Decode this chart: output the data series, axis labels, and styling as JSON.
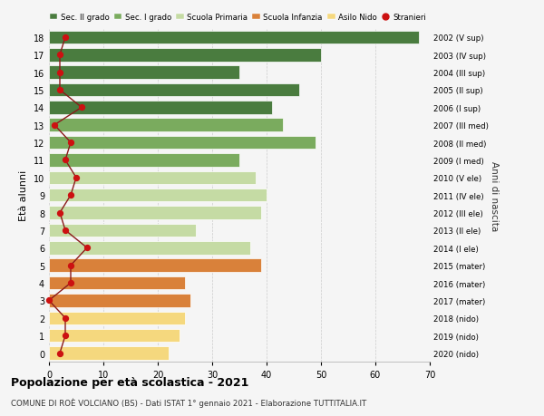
{
  "ages": [
    18,
    17,
    16,
    15,
    14,
    13,
    12,
    11,
    10,
    9,
    8,
    7,
    6,
    5,
    4,
    3,
    2,
    1,
    0
  ],
  "values": [
    68,
    50,
    35,
    46,
    41,
    43,
    49,
    35,
    38,
    40,
    39,
    27,
    37,
    39,
    25,
    26,
    25,
    24,
    22
  ],
  "stranieri": [
    3,
    2,
    2,
    2,
    6,
    1,
    4,
    3,
    5,
    4,
    2,
    3,
    7,
    4,
    4,
    0,
    3,
    3,
    2
  ],
  "right_labels": [
    "2002 (V sup)",
    "2003 (IV sup)",
    "2004 (III sup)",
    "2005 (II sup)",
    "2006 (I sup)",
    "2007 (III med)",
    "2008 (II med)",
    "2009 (I med)",
    "2010 (V ele)",
    "2011 (IV ele)",
    "2012 (III ele)",
    "2013 (II ele)",
    "2014 (I ele)",
    "2015 (mater)",
    "2016 (mater)",
    "2017 (mater)",
    "2018 (nido)",
    "2019 (nido)",
    "2020 (nido)"
  ],
  "bar_colors": [
    "#4a7c3f",
    "#4a7c3f",
    "#4a7c3f",
    "#4a7c3f",
    "#4a7c3f",
    "#7aab5e",
    "#7aab5e",
    "#7aab5e",
    "#c5dba4",
    "#c5dba4",
    "#c5dba4",
    "#c5dba4",
    "#c5dba4",
    "#d9813a",
    "#d9813a",
    "#d9813a",
    "#f5d87e",
    "#f5d87e",
    "#f5d87e"
  ],
  "legend_labels": [
    "Sec. II grado",
    "Sec. I grado",
    "Scuola Primaria",
    "Scuola Infanzia",
    "Asilo Nido",
    "Stranieri"
  ],
  "legend_colors": [
    "#4a7c3f",
    "#7aab5e",
    "#c5dba4",
    "#d9813a",
    "#f5d87e",
    "#cc1111"
  ],
  "title": "Popolazione per età scolastica - 2021",
  "subtitle": "COMUNE DI ROÈ VOLCIANO (BS) - Dati ISTAT 1° gennaio 2021 - Elaborazione TUTTITALIA.IT",
  "ylabel": "Età alunni",
  "right_ylabel": "Anni di nascita",
  "xlim": [
    0,
    70
  ],
  "background_color": "#f5f5f5",
  "grid_color": "#cccccc"
}
